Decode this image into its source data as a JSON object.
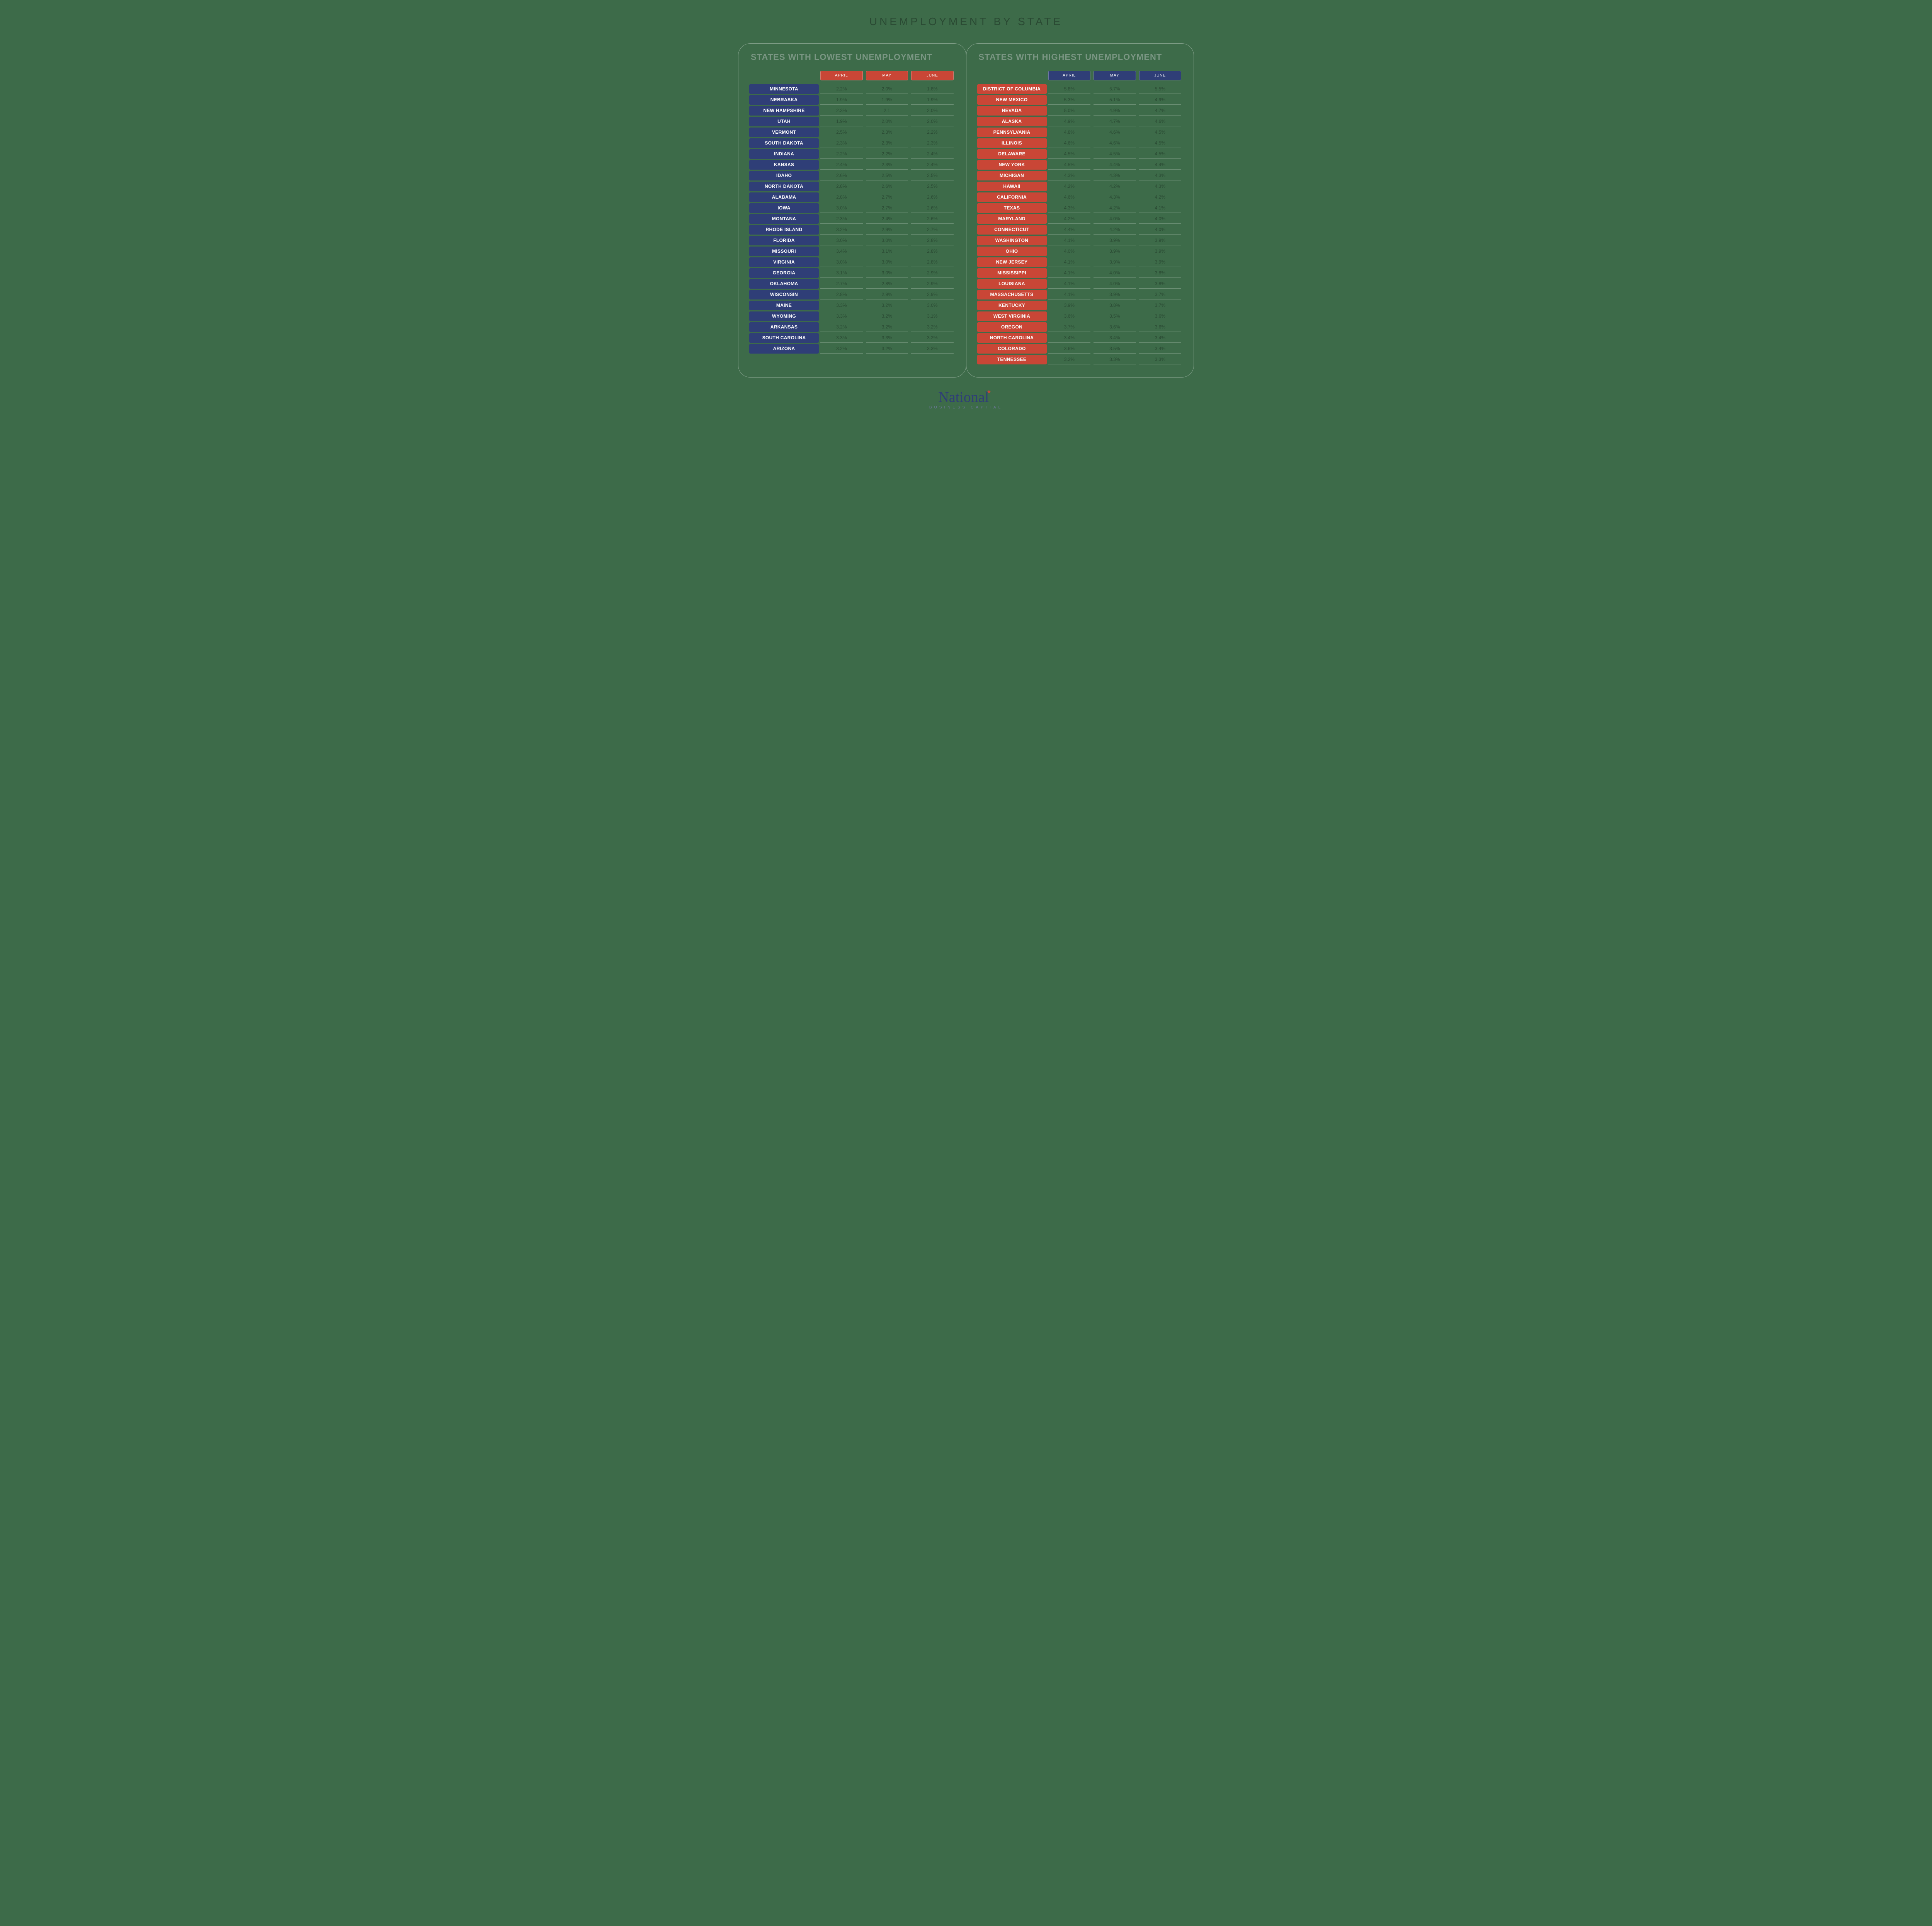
{
  "title": "UNEMPLOYMENT BY STATE",
  "months": [
    "APRIL",
    "MAY",
    "JUNE"
  ],
  "colors": {
    "background": "#3d6b49",
    "lowest_state_bg": "#2f3e77",
    "lowest_month_bg": "#c94636",
    "highest_state_bg": "#c94636",
    "highest_month_bg": "#2f3e77",
    "value_text": "#2a4a33",
    "panel_title": "#7a9683"
  },
  "lowest": {
    "title": "STATES WITH LOWEST UNEMPLOYMENT",
    "rows": [
      {
        "state": "MINNESOTA",
        "vals": [
          "2.2%",
          "2.0%",
          "1.8%"
        ]
      },
      {
        "state": "NEBRASKA",
        "vals": [
          "1.9%",
          "1.9%",
          "1.9%"
        ]
      },
      {
        "state": "NEW HAMPSHIRE",
        "vals": [
          "2.3%",
          "2.1",
          "2.0%"
        ]
      },
      {
        "state": "UTAH",
        "vals": [
          "1.9%",
          "2.0%",
          "2.0%"
        ]
      },
      {
        "state": "VERMONT",
        "vals": [
          "2.5%",
          "2.3%",
          "2.2%"
        ]
      },
      {
        "state": "SOUTH DAKOTA",
        "vals": [
          "2.3%",
          "2.3%",
          "2.3%"
        ]
      },
      {
        "state": "INDIANA",
        "vals": [
          "2.2%",
          "2.2%",
          "2.4%"
        ]
      },
      {
        "state": "KANSAS",
        "vals": [
          "2.4%",
          "2.3%",
          "2.4%"
        ]
      },
      {
        "state": "IDAHO",
        "vals": [
          "2.6%",
          "2.5%",
          "2.5%"
        ]
      },
      {
        "state": "NORTH DAKOTA",
        "vals": [
          "2.8%",
          "2.6%",
          "2.5%"
        ]
      },
      {
        "state": "ALABAMA",
        "vals": [
          "2.8%",
          "2.7%",
          "2.6%"
        ]
      },
      {
        "state": "IOWA",
        "vals": [
          "3.0%",
          "2.7%",
          "2.6%"
        ]
      },
      {
        "state": "MONTANA",
        "vals": [
          "2.3%",
          "2.4%",
          "2.6%"
        ]
      },
      {
        "state": "RHODE ISLAND",
        "vals": [
          "3.2%",
          "2.9%",
          "2.7%"
        ]
      },
      {
        "state": "FLORIDA",
        "vals": [
          "3.0%",
          "3.0%",
          "2.8%"
        ]
      },
      {
        "state": "MISSOURI",
        "vals": [
          "3.4%",
          "3.1%",
          "2.8%"
        ]
      },
      {
        "state": "VIRGINIA",
        "vals": [
          "3.0%",
          "3.0%",
          "2.8%"
        ]
      },
      {
        "state": "GEORGIA",
        "vals": [
          "3.1%",
          "3.0%",
          "2.9%"
        ]
      },
      {
        "state": "OKLAHOMA",
        "vals": [
          "2.7%",
          "2.8%",
          "2.9%"
        ]
      },
      {
        "state": "WISCONSIN",
        "vals": [
          "2.8%",
          "2.9%",
          "2.9%"
        ]
      },
      {
        "state": "MAINE",
        "vals": [
          "3.3%",
          "3.2%",
          "3.0%"
        ]
      },
      {
        "state": "WYOMING",
        "vals": [
          "3.3%",
          "3.2%",
          "3.1%"
        ]
      },
      {
        "state": "ARKANSAS",
        "vals": [
          "3.2%",
          "3.2%",
          "3.2%"
        ]
      },
      {
        "state": "SOUTH CAROLINA",
        "vals": [
          "3.3%",
          "3.3%",
          "3.2%"
        ]
      },
      {
        "state": "ARIZONA",
        "vals": [
          "3.2%",
          "3.2%",
          "3.3%"
        ]
      }
    ]
  },
  "highest": {
    "title": "STATES WITH HIGHEST UNEMPLOYMENT",
    "rows": [
      {
        "state": "DISTRICT OF COLUMBIA",
        "vals": [
          "5.8%",
          "5.7%",
          "5.5%"
        ]
      },
      {
        "state": "NEW MEXICO",
        "vals": [
          "5.3%",
          "5.1%",
          "4.9%"
        ]
      },
      {
        "state": "NEVADA",
        "vals": [
          "5.0%",
          "4.9%",
          "4.7%"
        ]
      },
      {
        "state": "ALASKA",
        "vals": [
          "4.9%",
          "4.7%",
          "4.6%"
        ]
      },
      {
        "state": "PENNSYLVANIA",
        "vals": [
          "4.8%",
          "4.6%",
          "4.5%"
        ]
      },
      {
        "state": "ILLINOIS",
        "vals": [
          "4.6%",
          "4.6%",
          "4.5%"
        ]
      },
      {
        "state": "DELAWARE",
        "vals": [
          "4.5%",
          "4.5%",
          "4.5%"
        ]
      },
      {
        "state": "NEW YORK",
        "vals": [
          "4.5%",
          "4.4%",
          "4.4%"
        ]
      },
      {
        "state": "MICHIGAN",
        "vals": [
          "4.3%",
          "4.3%",
          "4.3%"
        ]
      },
      {
        "state": "HAWAII",
        "vals": [
          "4.2%",
          "4.2%",
          "4.3%"
        ]
      },
      {
        "state": "CALIFORNIA",
        "vals": [
          "4.6%",
          "4.3%",
          "4.2%"
        ]
      },
      {
        "state": "TEXAS",
        "vals": [
          "4.3%",
          "4.2%",
          "4.1%"
        ]
      },
      {
        "state": "MARYLAND",
        "vals": [
          "4.2%",
          "4.0%",
          "4.0%"
        ]
      },
      {
        "state": "CONNECTICUT",
        "vals": [
          "4.4%",
          "4.2%",
          "4.0%"
        ]
      },
      {
        "state": "WASHINGTON",
        "vals": [
          "4.1%",
          "3.9%",
          "3.9%"
        ]
      },
      {
        "state": "OHIO",
        "vals": [
          "4.0%",
          "3.9%",
          "3.9%"
        ]
      },
      {
        "state": "NEW JERSEY",
        "vals": [
          "4.1%",
          "3.9%",
          "3.9%"
        ]
      },
      {
        "state": "MISSISSIPPI",
        "vals": [
          "4.1%",
          "4.0%",
          "3.8%"
        ]
      },
      {
        "state": "LOUISIANA",
        "vals": [
          "4.1%",
          "4.0%",
          "3.8%"
        ]
      },
      {
        "state": "MASSACHUSETTS",
        "vals": [
          "4.1%",
          "3.9%",
          "3.7%"
        ]
      },
      {
        "state": "KENTUCKY",
        "vals": [
          "3.9%",
          "3.8%",
          "3.7%"
        ]
      },
      {
        "state": "WEST VIRGINIA",
        "vals": [
          "3.6%",
          "3.5%",
          "3.6%"
        ]
      },
      {
        "state": "OREGON",
        "vals": [
          "3.7%",
          "3.6%",
          "3.6%"
        ]
      },
      {
        "state": "NORTH CAROLINA",
        "vals": [
          "3.4%",
          "3.4%",
          "3.4%"
        ]
      },
      {
        "state": "COLORADO",
        "vals": [
          "3.6%",
          "3.5%",
          "3.4%"
        ]
      },
      {
        "state": "TENNESSEE",
        "vals": [
          "3.2%",
          "3.3%",
          "3.3%"
        ]
      }
    ]
  },
  "logo": {
    "top": "National",
    "sub": "BUSINESS CAPITAL"
  }
}
